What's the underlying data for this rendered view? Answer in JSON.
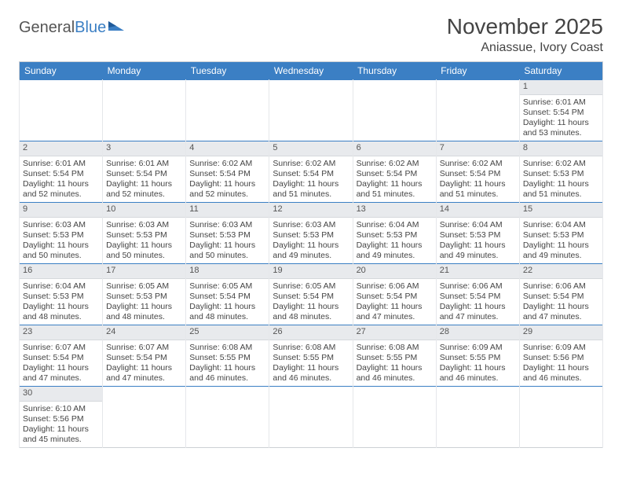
{
  "brand": {
    "part1": "General",
    "part2": "Blue"
  },
  "header": {
    "month_title": "November 2025",
    "location": "Aniassue, Ivory Coast"
  },
  "colors": {
    "header_bg": "#3b7fc4",
    "header_text": "#ffffff",
    "row_divider": "#3b7fc4",
    "daynum_bg": "#e8eaed",
    "text": "#444444"
  },
  "days_of_week": [
    "Sunday",
    "Monday",
    "Tuesday",
    "Wednesday",
    "Thursday",
    "Friday",
    "Saturday"
  ],
  "weeks": [
    [
      null,
      null,
      null,
      null,
      null,
      null,
      {
        "n": "1",
        "sr": "Sunrise: 6:01 AM",
        "ss": "Sunset: 5:54 PM",
        "dl1": "Daylight: 11 hours",
        "dl2": "and 53 minutes."
      }
    ],
    [
      {
        "n": "2",
        "sr": "Sunrise: 6:01 AM",
        "ss": "Sunset: 5:54 PM",
        "dl1": "Daylight: 11 hours",
        "dl2": "and 52 minutes."
      },
      {
        "n": "3",
        "sr": "Sunrise: 6:01 AM",
        "ss": "Sunset: 5:54 PM",
        "dl1": "Daylight: 11 hours",
        "dl2": "and 52 minutes."
      },
      {
        "n": "4",
        "sr": "Sunrise: 6:02 AM",
        "ss": "Sunset: 5:54 PM",
        "dl1": "Daylight: 11 hours",
        "dl2": "and 52 minutes."
      },
      {
        "n": "5",
        "sr": "Sunrise: 6:02 AM",
        "ss": "Sunset: 5:54 PM",
        "dl1": "Daylight: 11 hours",
        "dl2": "and 51 minutes."
      },
      {
        "n": "6",
        "sr": "Sunrise: 6:02 AM",
        "ss": "Sunset: 5:54 PM",
        "dl1": "Daylight: 11 hours",
        "dl2": "and 51 minutes."
      },
      {
        "n": "7",
        "sr": "Sunrise: 6:02 AM",
        "ss": "Sunset: 5:54 PM",
        "dl1": "Daylight: 11 hours",
        "dl2": "and 51 minutes."
      },
      {
        "n": "8",
        "sr": "Sunrise: 6:02 AM",
        "ss": "Sunset: 5:53 PM",
        "dl1": "Daylight: 11 hours",
        "dl2": "and 51 minutes."
      }
    ],
    [
      {
        "n": "9",
        "sr": "Sunrise: 6:03 AM",
        "ss": "Sunset: 5:53 PM",
        "dl1": "Daylight: 11 hours",
        "dl2": "and 50 minutes."
      },
      {
        "n": "10",
        "sr": "Sunrise: 6:03 AM",
        "ss": "Sunset: 5:53 PM",
        "dl1": "Daylight: 11 hours",
        "dl2": "and 50 minutes."
      },
      {
        "n": "11",
        "sr": "Sunrise: 6:03 AM",
        "ss": "Sunset: 5:53 PM",
        "dl1": "Daylight: 11 hours",
        "dl2": "and 50 minutes."
      },
      {
        "n": "12",
        "sr": "Sunrise: 6:03 AM",
        "ss": "Sunset: 5:53 PM",
        "dl1": "Daylight: 11 hours",
        "dl2": "and 49 minutes."
      },
      {
        "n": "13",
        "sr": "Sunrise: 6:04 AM",
        "ss": "Sunset: 5:53 PM",
        "dl1": "Daylight: 11 hours",
        "dl2": "and 49 minutes."
      },
      {
        "n": "14",
        "sr": "Sunrise: 6:04 AM",
        "ss": "Sunset: 5:53 PM",
        "dl1": "Daylight: 11 hours",
        "dl2": "and 49 minutes."
      },
      {
        "n": "15",
        "sr": "Sunrise: 6:04 AM",
        "ss": "Sunset: 5:53 PM",
        "dl1": "Daylight: 11 hours",
        "dl2": "and 49 minutes."
      }
    ],
    [
      {
        "n": "16",
        "sr": "Sunrise: 6:04 AM",
        "ss": "Sunset: 5:53 PM",
        "dl1": "Daylight: 11 hours",
        "dl2": "and 48 minutes."
      },
      {
        "n": "17",
        "sr": "Sunrise: 6:05 AM",
        "ss": "Sunset: 5:53 PM",
        "dl1": "Daylight: 11 hours",
        "dl2": "and 48 minutes."
      },
      {
        "n": "18",
        "sr": "Sunrise: 6:05 AM",
        "ss": "Sunset: 5:54 PM",
        "dl1": "Daylight: 11 hours",
        "dl2": "and 48 minutes."
      },
      {
        "n": "19",
        "sr": "Sunrise: 6:05 AM",
        "ss": "Sunset: 5:54 PM",
        "dl1": "Daylight: 11 hours",
        "dl2": "and 48 minutes."
      },
      {
        "n": "20",
        "sr": "Sunrise: 6:06 AM",
        "ss": "Sunset: 5:54 PM",
        "dl1": "Daylight: 11 hours",
        "dl2": "and 47 minutes."
      },
      {
        "n": "21",
        "sr": "Sunrise: 6:06 AM",
        "ss": "Sunset: 5:54 PM",
        "dl1": "Daylight: 11 hours",
        "dl2": "and 47 minutes."
      },
      {
        "n": "22",
        "sr": "Sunrise: 6:06 AM",
        "ss": "Sunset: 5:54 PM",
        "dl1": "Daylight: 11 hours",
        "dl2": "and 47 minutes."
      }
    ],
    [
      {
        "n": "23",
        "sr": "Sunrise: 6:07 AM",
        "ss": "Sunset: 5:54 PM",
        "dl1": "Daylight: 11 hours",
        "dl2": "and 47 minutes."
      },
      {
        "n": "24",
        "sr": "Sunrise: 6:07 AM",
        "ss": "Sunset: 5:54 PM",
        "dl1": "Daylight: 11 hours",
        "dl2": "and 47 minutes."
      },
      {
        "n": "25",
        "sr": "Sunrise: 6:08 AM",
        "ss": "Sunset: 5:55 PM",
        "dl1": "Daylight: 11 hours",
        "dl2": "and 46 minutes."
      },
      {
        "n": "26",
        "sr": "Sunrise: 6:08 AM",
        "ss": "Sunset: 5:55 PM",
        "dl1": "Daylight: 11 hours",
        "dl2": "and 46 minutes."
      },
      {
        "n": "27",
        "sr": "Sunrise: 6:08 AM",
        "ss": "Sunset: 5:55 PM",
        "dl1": "Daylight: 11 hours",
        "dl2": "and 46 minutes."
      },
      {
        "n": "28",
        "sr": "Sunrise: 6:09 AM",
        "ss": "Sunset: 5:55 PM",
        "dl1": "Daylight: 11 hours",
        "dl2": "and 46 minutes."
      },
      {
        "n": "29",
        "sr": "Sunrise: 6:09 AM",
        "ss": "Sunset: 5:56 PM",
        "dl1": "Daylight: 11 hours",
        "dl2": "and 46 minutes."
      }
    ],
    [
      {
        "n": "30",
        "sr": "Sunrise: 6:10 AM",
        "ss": "Sunset: 5:56 PM",
        "dl1": "Daylight: 11 hours",
        "dl2": "and 45 minutes."
      },
      null,
      null,
      null,
      null,
      null,
      null
    ]
  ]
}
